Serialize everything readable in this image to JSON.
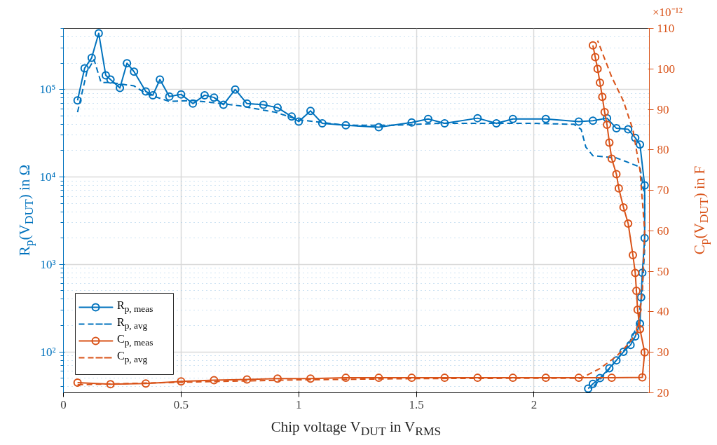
{
  "chart_data": {
    "type": "line",
    "xlabel": "Chip voltage V$_{DUT}$ in V$_{RMS}$",
    "ylabel": "R$_{p}$(V$_{DUT}$) in Ω",
    "y2label": "C$_{p}$(V$_{DUT}$) in F",
    "annotations": [
      "×10⁻¹²"
    ],
    "xlim": [
      0,
      2.49
    ],
    "xticks": [
      0,
      0.5,
      1,
      1.5,
      2
    ],
    "log": "y",
    "ylim": [
      34,
      500000
    ],
    "yticks": [
      {
        "value": 100,
        "label": "10²"
      },
      {
        "value": 1000,
        "label": "10³"
      },
      {
        "value": 10000,
        "label": "10⁴"
      },
      {
        "value": 100000,
        "label": "10⁵"
      }
    ],
    "y2lim": [
      20,
      110
    ],
    "y2ticks": [
      20,
      30,
      40,
      50,
      60,
      70,
      80,
      90,
      100,
      110
    ],
    "grid": true,
    "legend": "bottom left",
    "series": [
      {
        "name": "R$_{p, meas}$",
        "color": "#0072bd",
        "marker": "circle",
        "line_style": "solid",
        "x": [
          0.06,
          0.09,
          0.12,
          0.15,
          0.18,
          0.2,
          0.24,
          0.27,
          0.3,
          0.35,
          0.38,
          0.41,
          0.45,
          0.5,
          0.55,
          0.6,
          0.64,
          0.68,
          0.73,
          0.78,
          0.85,
          0.91,
          0.97,
          1.0,
          1.05,
          1.1,
          1.2,
          1.34,
          1.48,
          1.55,
          1.62,
          1.76,
          1.84,
          1.91,
          2.05,
          2.19,
          2.25,
          2.31,
          2.35,
          2.4,
          2.43,
          2.45,
          2.47,
          2.47,
          2.46,
          2.455,
          2.45,
          2.43,
          2.41,
          2.38,
          2.35,
          2.32,
          2.28,
          2.25,
          2.23
        ],
        "values": [
          75000,
          175000,
          230000,
          440000,
          145000,
          130000,
          104000,
          200000,
          160000,
          95000,
          86000,
          130000,
          83000,
          88000,
          69000,
          86000,
          81000,
          67000,
          100000,
          69000,
          67000,
          62000,
          49000,
          43000,
          57000,
          41000,
          39000,
          37000,
          42000,
          46000,
          41000,
          47000,
          41000,
          46000,
          46000,
          43000,
          44000,
          47000,
          36000,
          35000,
          28000,
          23500,
          8000,
          2000,
          800,
          420,
          210,
          150,
          120,
          100,
          80,
          65,
          50,
          43,
          38
        ]
      },
      {
        "name": "R$_{p, avg}$",
        "color": "#0072bd",
        "marker": "none",
        "line_style": "dashed",
        "x": [
          0.06,
          0.1,
          0.13,
          0.16,
          0.2,
          0.3,
          0.35,
          0.45,
          0.55,
          0.65,
          0.75,
          0.9,
          1.0,
          1.1,
          1.2,
          1.4,
          1.6,
          1.8,
          2.0,
          2.17,
          2.2,
          2.22,
          2.25,
          2.35,
          2.45,
          2.47,
          2.47,
          2.46,
          2.44,
          2.4,
          2.35,
          2.3,
          2.26,
          2.24
        ],
        "values": [
          55000,
          160000,
          220000,
          120000,
          120000,
          110000,
          90000,
          73000,
          75000,
          70000,
          65000,
          55000,
          45000,
          42000,
          39000,
          39000,
          41000,
          41000,
          41000,
          40000,
          35000,
          22000,
          17500,
          16500,
          13000,
          6000,
          1500,
          500,
          200,
          120,
          80,
          55,
          42,
          38
        ]
      },
      {
        "name": "C$_{p, meas}$",
        "color": "#d95319",
        "marker": "circle",
        "line_style": "solid",
        "axis": "y2",
        "x": [
          0.06,
          0.2,
          0.35,
          0.5,
          0.64,
          0.78,
          0.91,
          1.05,
          1.2,
          1.34,
          1.48,
          1.62,
          1.76,
          1.91,
          2.05,
          2.19,
          2.33,
          2.46,
          2.47,
          2.45,
          2.44,
          2.435,
          2.43,
          2.42,
          2.4,
          2.38,
          2.36,
          2.35,
          2.33,
          2.32,
          2.31,
          2.3,
          2.29,
          2.28,
          2.27,
          2.26,
          2.25
        ],
        "values": [
          22.5,
          22.1,
          22.3,
          22.8,
          23.1,
          23.3,
          23.5,
          23.5,
          23.7,
          23.7,
          23.7,
          23.7,
          23.7,
          23.7,
          23.7,
          23.7,
          23.7,
          23.8,
          30,
          35.7,
          40.5,
          45.2,
          49.6,
          54,
          61.8,
          65.8,
          70.5,
          74,
          77.8,
          81.8,
          86.2,
          89.3,
          93.1,
          96.6,
          100,
          102.9,
          105.8
        ]
      },
      {
        "name": "C$_{p, avg}$",
        "color": "#d95319",
        "marker": "none",
        "line_style": "dashed",
        "axis": "y2",
        "x": [
          0.06,
          0.5,
          1.0,
          1.5,
          2.0,
          2.2,
          2.28,
          2.35,
          2.4,
          2.44,
          2.46,
          2.47,
          2.45,
          2.42,
          2.38,
          2.33,
          2.29,
          2.27
        ],
        "values": [
          22,
          22.6,
          23.2,
          23.5,
          23.6,
          23.6,
          26,
          29,
          32,
          35,
          45,
          60,
          75,
          85,
          92,
          98,
          104,
          107
        ]
      }
    ]
  }
}
